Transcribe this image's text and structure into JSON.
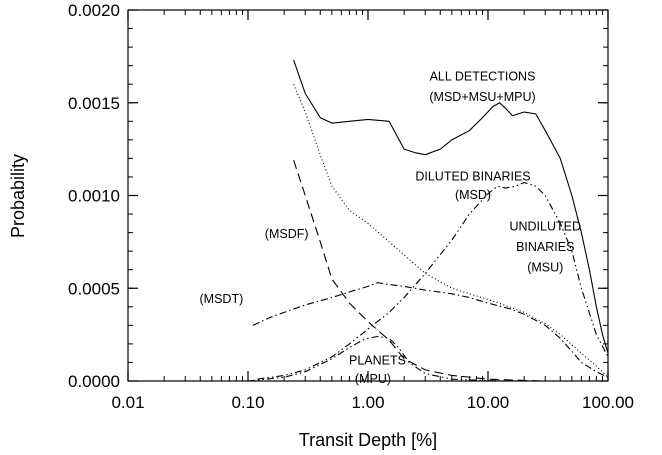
{
  "chart_data": {
    "type": "line",
    "title": "",
    "xlabel": "Transit Depth [%]",
    "ylabel": "Probability",
    "x_scale": "log",
    "xlim": [
      0.01,
      100
    ],
    "ylim": [
      0,
      0.002
    ],
    "grid": false,
    "x_ticks": [
      0.01,
      0.1,
      1,
      10,
      100
    ],
    "x_tick_labels": [
      "0.01",
      "0.10",
      "1.00",
      "10.00",
      "100.00"
    ],
    "y_ticks": [
      0,
      0.0005,
      0.001,
      0.0015,
      0.002
    ],
    "y_tick_labels": [
      "0.0000",
      "0.0005",
      "0.0010",
      "0.0015",
      "0.0020"
    ],
    "series": [
      {
        "id": "all",
        "style": "solid",
        "x": [
          0.24,
          0.3,
          0.4,
          0.5,
          0.7,
          1.0,
          1.5,
          2.0,
          2.5,
          3.0,
          4.0,
          5.0,
          7.0,
          9.0,
          11.0,
          12.5,
          14.0,
          16.0,
          20.0,
          25.0,
          30.0,
          40.0,
          50.0,
          60.0,
          70.0,
          80.0,
          90.0,
          100.0
        ],
        "y": [
          0.00173,
          0.00155,
          0.00142,
          0.00139,
          0.0014,
          0.00141,
          0.0014,
          0.00125,
          0.00123,
          0.00122,
          0.00125,
          0.0013,
          0.00135,
          0.00142,
          0.00148,
          0.0015,
          0.00147,
          0.00143,
          0.00145,
          0.00144,
          0.00135,
          0.0012,
          0.001,
          0.0008,
          0.0006,
          0.0004,
          0.00025,
          0.00015
        ]
      },
      {
        "id": "diluted",
        "style": "dotted",
        "x": [
          0.24,
          0.3,
          0.4,
          0.5,
          0.7,
          1.0,
          1.5,
          2.0,
          3.0,
          5.0,
          7.0,
          10.0,
          15.0,
          20.0,
          30.0,
          40.0,
          60.0,
          80.0,
          100.0
        ],
        "y": [
          0.0016,
          0.00145,
          0.00122,
          0.00105,
          0.00092,
          0.00085,
          0.00075,
          0.00068,
          0.00058,
          0.0005,
          0.00047,
          0.00044,
          0.0004,
          0.00037,
          0.00031,
          0.00025,
          0.00015,
          8e-05,
          2e-05
        ]
      },
      {
        "id": "undiluted",
        "style": "dash-dot-dot",
        "x": [
          0.12,
          0.2,
          0.3,
          0.5,
          0.7,
          1.0,
          1.5,
          2.0,
          3.0,
          5.0,
          7.0,
          10.0,
          12.0,
          14.0,
          17.0,
          20.0,
          25.0,
          30.0,
          40.0,
          50.0,
          60.0,
          80.0,
          100.0
        ],
        "y": [
          1e-05,
          3e-05,
          6e-05,
          0.00013,
          0.0002,
          0.00028,
          0.00037,
          0.00045,
          0.00058,
          0.00076,
          0.0009,
          0.00101,
          0.00105,
          0.00104,
          0.00105,
          0.00107,
          0.00105,
          0.001,
          0.00085,
          0.0007,
          0.0005,
          0.00025,
          0.00013
        ]
      },
      {
        "id": "msdt",
        "style": "dash-dot",
        "x": [
          0.11,
          0.15,
          0.2,
          0.3,
          0.5,
          0.7,
          1.0,
          1.2,
          1.5,
          2.0,
          3.0,
          5.0,
          7.0,
          10.0,
          15.0,
          20.0,
          30.0,
          40.0,
          50.0,
          60.0,
          80.0,
          100.0
        ],
        "y": [
          0.0003,
          0.00034,
          0.00037,
          0.00041,
          0.00045,
          0.00048,
          0.00051,
          0.00053,
          0.00052,
          0.00051,
          0.00049,
          0.00047,
          0.00045,
          0.00042,
          0.00039,
          0.00036,
          0.0003,
          0.00023,
          0.00016,
          0.0001,
          5e-05,
          2e-05
        ]
      },
      {
        "id": "msdf",
        "style": "dashed",
        "x": [
          0.24,
          0.3,
          0.4,
          0.5,
          0.7,
          1.0,
          1.5,
          2.0,
          3.0,
          5.0,
          10.0,
          20.0,
          30.0
        ],
        "y": [
          0.00119,
          0.001,
          0.00075,
          0.00055,
          0.00042,
          0.00032,
          0.00022,
          0.00012,
          6e-05,
          3e-05,
          1e-05,
          3e-06,
          0.0
        ]
      },
      {
        "id": "planets",
        "style": "dash-dot-dot",
        "x": [
          0.1,
          0.2,
          0.3,
          0.5,
          0.7,
          0.9,
          1.0,
          1.2,
          1.5,
          1.8,
          2.2,
          3.0,
          5.0,
          10.0,
          15.0,
          20.0
        ],
        "y": [
          0.0,
          2e-05,
          5e-05,
          0.00012,
          0.00018,
          0.00022,
          0.00023,
          0.00024,
          0.00023,
          0.00018,
          0.0001,
          4e-05,
          1e-05,
          2e-06,
          5e-07,
          0.0
        ]
      }
    ],
    "annotations": [
      {
        "id": "all-1",
        "text": "ALL DETECTIONS",
        "x": 9.0,
        "y": 0.00162
      },
      {
        "id": "all-2",
        "text": "(MSD+MSU+MPU)",
        "x": 9.0,
        "y": 0.00151
      },
      {
        "id": "diluted-1",
        "text": "DILUTED BINARIES",
        "x": 7.5,
        "y": 0.00108
      },
      {
        "id": "diluted-2",
        "text": "(MSD)",
        "x": 7.5,
        "y": 0.00098
      },
      {
        "id": "undiluted-1",
        "text": "UNDILUTED",
        "x": 30.0,
        "y": 0.00081
      },
      {
        "id": "undiluted-2",
        "text": "BINARIES",
        "x": 30.0,
        "y": 0.0007
      },
      {
        "id": "undiluted-3",
        "text": "(MSU)",
        "x": 30.0,
        "y": 0.00059
      },
      {
        "id": "msdf",
        "text": "(MSDF)",
        "x": 0.21,
        "y": 0.00077
      },
      {
        "id": "msdt",
        "text": "(MSDT)",
        "x": 0.06,
        "y": 0.00042
      },
      {
        "id": "planets-1",
        "text": "PLANETS",
        "x": 1.2,
        "y": 9e-05
      },
      {
        "id": "planets-2",
        "text": "(MPU)",
        "x": 1.1,
        "y": -1e-05
      }
    ]
  }
}
